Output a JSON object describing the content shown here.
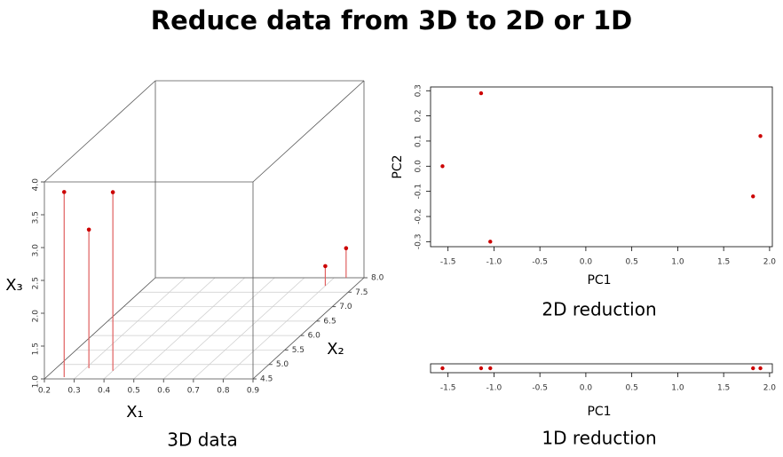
{
  "title": "Reduce data from 3D to 2D or 1D",
  "chart_data": [
    {
      "type": "scatter3d",
      "caption": "3D data",
      "x_label": "X₁",
      "y_label": "X₂",
      "z_label": "X₃",
      "x": [
        0.26,
        0.31,
        0.4,
        0.8,
        0.84
      ],
      "y": [
        4.56,
        4.87,
        4.78,
        7.72,
        8.0
      ],
      "values": [
        3.82,
        3.11,
        3.72,
        1.3,
        1.45
      ],
      "color": "#cc0000",
      "xlim": [
        0.2,
        0.9
      ],
      "xticks": [
        0.2,
        0.3,
        0.4,
        0.5,
        0.6,
        0.7,
        0.8,
        0.9
      ],
      "ylim": [
        4.5,
        8.0
      ],
      "yticks": [
        4.5,
        {
          "value": 5,
          "label": "5.0"
        },
        5.5,
        {
          "value": 6,
          "label": "6.0"
        },
        6.5,
        {
          "value": 7,
          "label": "7.0"
        },
        7.5,
        {
          "value": 8,
          "label": "8.0"
        }
      ],
      "zlim": [
        1,
        4
      ],
      "zticks": [
        {
          "value": 1,
          "label": "1.0"
        },
        1.5,
        {
          "value": 2,
          "label": "2.0"
        },
        2.5,
        {
          "value": 3,
          "label": "3.0"
        },
        3.5,
        {
          "value": 4,
          "label": "4.0"
        }
      ]
    },
    {
      "type": "scatter",
      "caption": "2D reduction",
      "x_label": "PC1",
      "y_label": "PC2",
      "x": [
        -1.56,
        -1.14,
        -1.04,
        1.82,
        1.9
      ],
      "values": [
        0.0,
        0.29,
        -0.3,
        -0.12,
        0.12
      ],
      "color": "#cc0000",
      "xlim": [
        -1.69,
        2.03
      ],
      "xticks": [
        -1.5,
        {
          "value": -1,
          "label": "-1.0"
        },
        -0.5,
        {
          "value": 0,
          "label": "0.0"
        },
        0.5,
        {
          "value": 1,
          "label": "1.0"
        },
        1.5,
        {
          "value": 2,
          "label": "2.0"
        }
      ],
      "ylim": [
        -0.32,
        0.315
      ],
      "yticks": [
        -0.3,
        -0.2,
        -0.1,
        {
          "value": 0,
          "label": "0.0"
        },
        0.1,
        0.2,
        0.3
      ]
    },
    {
      "type": "strip",
      "caption": "1D reduction",
      "x_label": "PC1",
      "values": [
        -1.56,
        -1.14,
        -1.04,
        1.82,
        1.9
      ],
      "color": "#cc0000",
      "xlim": [
        -1.69,
        2.03
      ],
      "xticks": [
        -1.5,
        {
          "value": -1,
          "label": "-1.0"
        },
        -0.5,
        {
          "value": 0,
          "label": "0.0"
        },
        0.5,
        {
          "value": 1,
          "label": "1.0"
        },
        1.5,
        {
          "value": 2,
          "label": "2.0"
        }
      ]
    }
  ]
}
